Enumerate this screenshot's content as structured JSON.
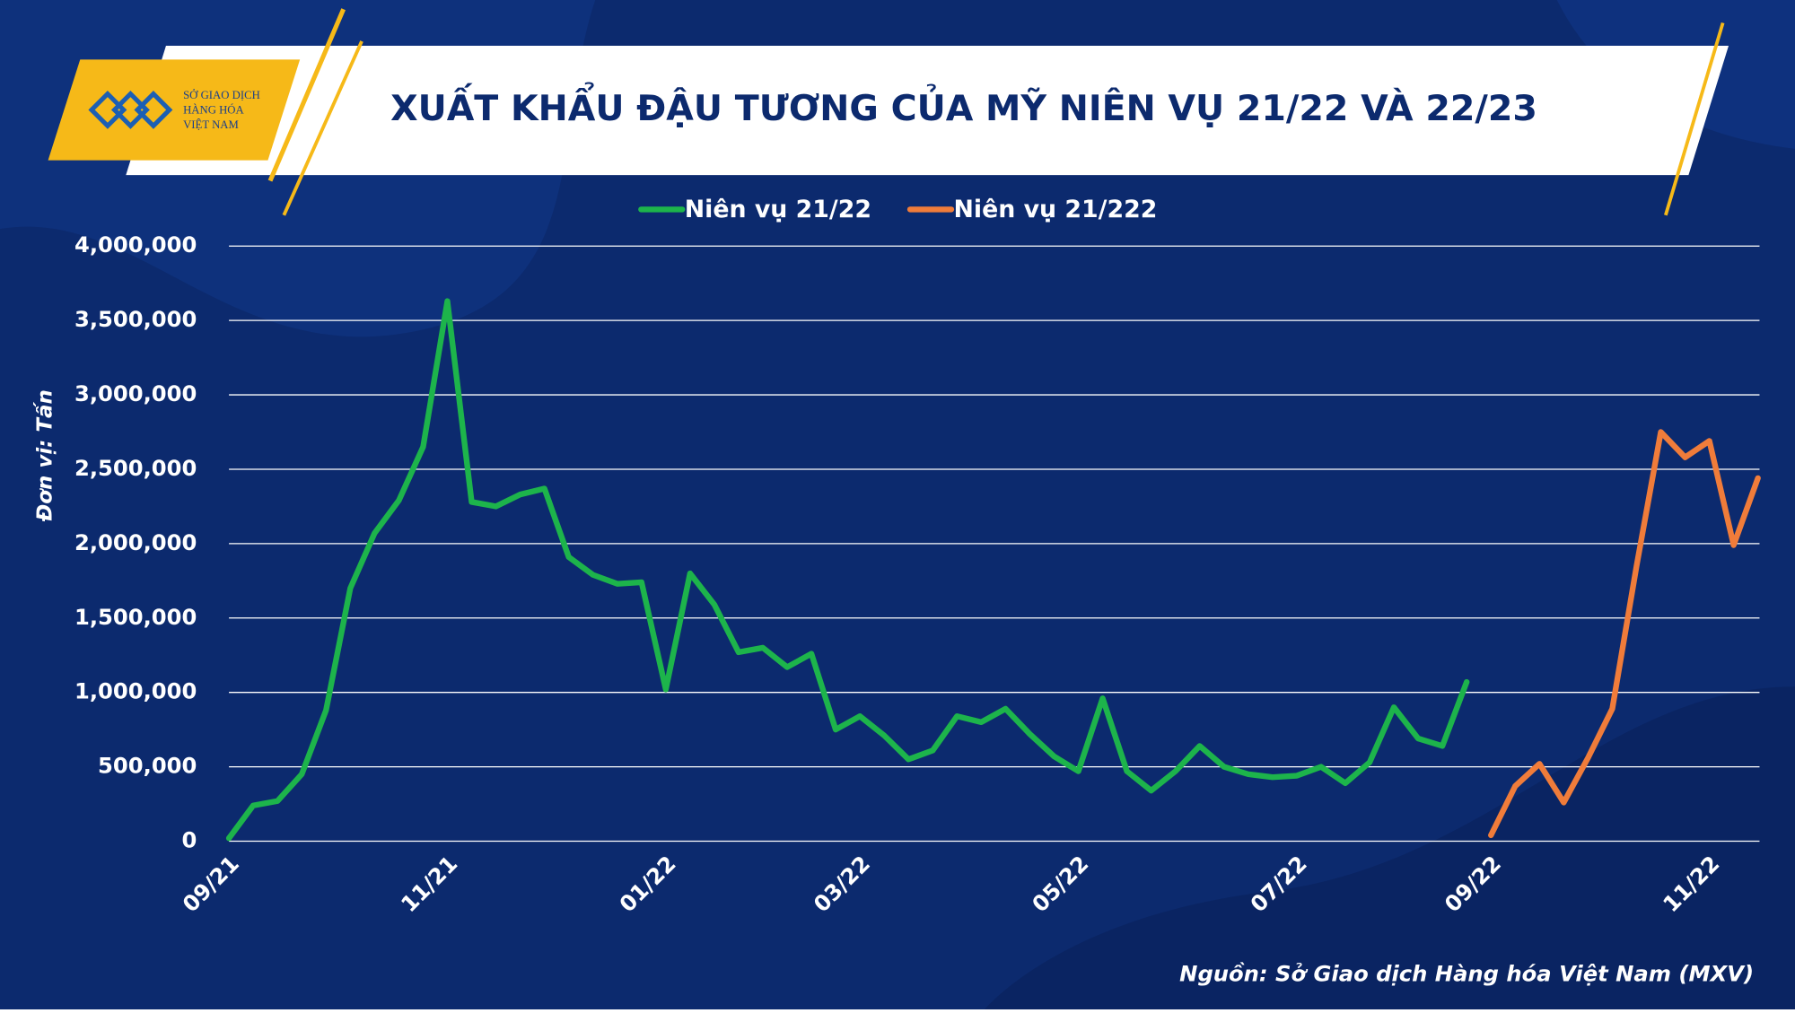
{
  "logo": {
    "lines": [
      "SỞ GIAO DỊCH",
      "HÀNG HÓA",
      "VIỆT NAM"
    ]
  },
  "chart_data": {
    "type": "line",
    "title": "XUẤT KHẨU ĐẬU TƯƠNG CỦA MỸ NIÊN VỤ 21/22 VÀ 22/23",
    "ylabel": "Đơn vị: Tấn",
    "source": "Nguồn: Sở Giao dịch Hàng hóa Việt Nam (MXV)",
    "categories": [
      "09/21",
      null,
      null,
      null,
      null,
      null,
      null,
      null,
      null,
      "11/21",
      null,
      null,
      null,
      null,
      null,
      null,
      null,
      null,
      "01/22",
      null,
      null,
      null,
      null,
      null,
      null,
      null,
      "03/22",
      null,
      null,
      null,
      null,
      null,
      null,
      null,
      null,
      "05/22",
      null,
      null,
      null,
      null,
      null,
      null,
      null,
      null,
      "07/22",
      null,
      null,
      null,
      null,
      null,
      null,
      null,
      "09/22",
      null,
      null,
      null,
      null,
      null,
      null,
      null,
      null,
      "11/22",
      null,
      null
    ],
    "series": [
      {
        "name": "Niên vụ 21/22",
        "color": "#1db44b",
        "values": [
          20000,
          240000,
          270000,
          450000,
          880000,
          1700000,
          2070000,
          2290000,
          2650000,
          3630000,
          2280000,
          2250000,
          2330000,
          2370000,
          1910000,
          1790000,
          1730000,
          1740000,
          1020000,
          1800000,
          1590000,
          1270000,
          1300000,
          1170000,
          1260000,
          750000,
          840000,
          710000,
          550000,
          610000,
          840000,
          800000,
          890000,
          720000,
          570000,
          470000,
          960000,
          470000,
          340000,
          470000,
          640000,
          500000,
          450000,
          430000,
          440000,
          500000,
          390000,
          530000,
          900000,
          690000,
          640000,
          1070000,
          null,
          null,
          null,
          null,
          null,
          null,
          null,
          null,
          null,
          null,
          null,
          null
        ]
      },
      {
        "name": "Niên vụ 21/222",
        "color": "#f07c3a",
        "values": [
          null,
          null,
          null,
          null,
          null,
          null,
          null,
          null,
          null,
          null,
          null,
          null,
          null,
          null,
          null,
          null,
          null,
          null,
          null,
          null,
          null,
          null,
          null,
          null,
          null,
          null,
          null,
          null,
          null,
          null,
          null,
          null,
          null,
          null,
          null,
          null,
          null,
          null,
          null,
          null,
          null,
          null,
          null,
          null,
          null,
          null,
          null,
          null,
          null,
          null,
          null,
          null,
          40000,
          370000,
          520000,
          260000,
          560000,
          890000,
          1850000,
          2750000,
          2580000,
          2690000,
          1990000,
          2440000
        ]
      }
    ],
    "ylim": [
      0,
      4000000
    ],
    "yticks": [
      0,
      {
        "value": 500000,
        "label": "500,000"
      },
      {
        "value": 1000000,
        "label": "1,000,000"
      },
      {
        "value": 1500000,
        "label": "1,500,000"
      },
      {
        "value": 2000000,
        "label": "2,000,000"
      },
      {
        "value": 2500000,
        "label": "2,500,000"
      },
      {
        "value": 3000000,
        "label": "3,000,000"
      },
      {
        "value": 3500000,
        "label": "3,500,000"
      },
      {
        "value": 4000000,
        "label": "4,000,000"
      }
    ],
    "grid": true,
    "legend": "top"
  }
}
